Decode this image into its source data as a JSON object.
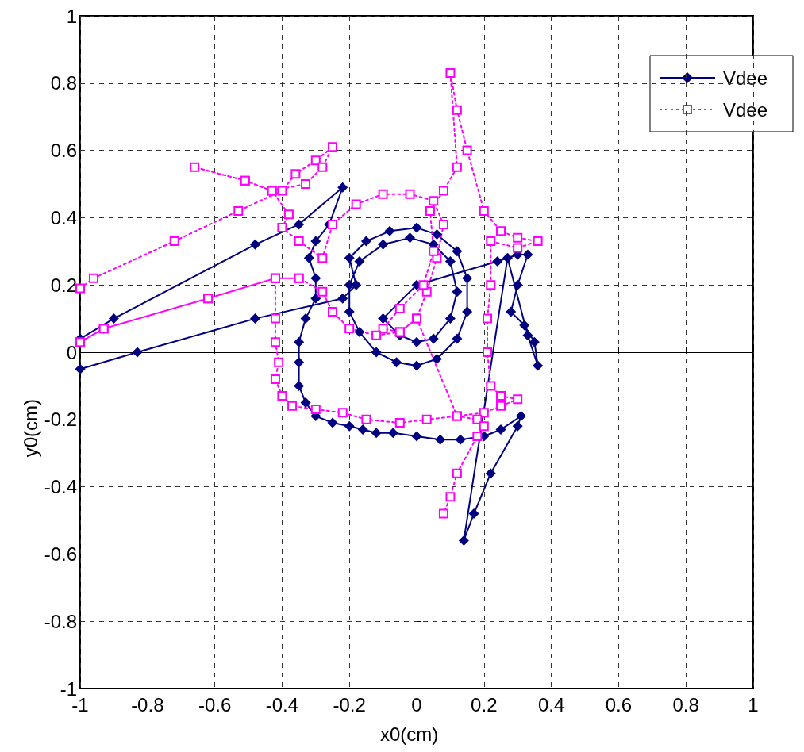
{
  "chart_data": {
    "type": "line",
    "xlabel": "x0(cm)",
    "ylabel": "y0(cm)",
    "xlim": [
      -1,
      1
    ],
    "ylim": [
      -1,
      1
    ],
    "xticks": [
      -1,
      -0.8,
      -0.6,
      -0.4,
      -0.2,
      0,
      0.2,
      0.4,
      0.6,
      0.8,
      1
    ],
    "yticks": [
      -1,
      -0.8,
      -0.6,
      -0.4,
      -0.2,
      0,
      0.2,
      0.4,
      0.6,
      0.8,
      1
    ],
    "grid": true,
    "legend": "top right",
    "series": [
      {
        "name": "Vdee",
        "color": "#000080",
        "marker": "diamond",
        "line_style": "solid",
        "x": [
          -1,
          -0.83,
          -0.48,
          -0.22,
          -0.18,
          -0.2,
          -0.15,
          -0.08,
          0,
          0.06,
          0.12,
          0.15,
          0.15,
          0.12,
          0.06,
          0,
          -0.06,
          -0.12,
          -0.17,
          -0.2,
          -0.2,
          -0.17,
          -0.1,
          -0.02,
          0.05,
          0.1,
          0.12,
          0.1,
          0.05,
          0,
          -0.05,
          -0.1,
          0,
          0.24,
          0.3,
          0.33,
          0.3,
          0.28,
          0.32,
          0.35,
          0.36,
          0.33,
          0.27,
          0.14,
          0.17,
          0.22,
          0.3,
          0.31,
          0.25,
          0.2,
          0.13,
          0.07,
          0,
          -0.07,
          -0.12,
          -0.16,
          -0.2,
          -0.25,
          -0.3,
          -0.33,
          -0.35,
          -0.35,
          -0.35,
          -0.33,
          -0.3,
          -0.3,
          -0.32,
          -0.3,
          -0.26,
          -0.22,
          -0.35,
          -0.48,
          -0.9,
          -1
        ],
        "values": [
          -0.05,
          0,
          0.1,
          0.16,
          0.2,
          0.28,
          0.33,
          0.36,
          0.37,
          0.35,
          0.3,
          0.22,
          0.12,
          0.04,
          -0.02,
          -0.04,
          -0.03,
          0,
          0.06,
          0.12,
          0.2,
          0.27,
          0.32,
          0.34,
          0.32,
          0.27,
          0.18,
          0.1,
          0.04,
          0.03,
          0.05,
          0.1,
          0.2,
          0.27,
          0.29,
          0.29,
          0.2,
          0.12,
          0.08,
          0.03,
          -0.04,
          0.05,
          0.28,
          -0.56,
          -0.48,
          -0.36,
          -0.22,
          -0.19,
          -0.23,
          -0.25,
          -0.26,
          -0.26,
          -0.25,
          -0.24,
          -0.24,
          -0.23,
          -0.22,
          -0.21,
          -0.19,
          -0.15,
          -0.1,
          -0.03,
          0.03,
          0.1,
          0.16,
          0.22,
          0.28,
          0.33,
          0.38,
          0.49,
          0.38,
          0.32,
          0.1,
          0.04
        ]
      },
      {
        "name": "Vdee",
        "color": "#ff00ff",
        "marker": "square",
        "line_style": "dotted",
        "x": [
          -1,
          -0.96,
          -0.72,
          -0.53,
          -0.4,
          -0.36,
          -0.3,
          -0.25,
          -0.28,
          -0.33,
          -0.43,
          -0.51,
          -0.66,
          -0.51,
          -0.43,
          -0.38,
          -0.4,
          -0.35,
          -0.28,
          -0.25,
          -0.18,
          -0.1,
          -0.02,
          0.05,
          0.08,
          0.06,
          0.03,
          0,
          -0.05,
          -0.1,
          -0.05,
          0.02,
          0.05,
          0.04,
          0.08,
          0.12,
          0.1,
          0.12,
          0.15,
          0.2,
          0.25,
          0.3,
          0.36,
          0.3,
          0.22,
          0.22,
          0.21,
          0.21,
          0.22,
          0.25,
          0.3,
          0.25,
          0.2,
          0.12,
          0.03,
          -0.05,
          -0.15,
          -0.22,
          -0.3,
          -0.37,
          -0.4,
          -0.42,
          -0.41,
          -0.42,
          -0.42,
          -0.42,
          -0.35,
          -0.42,
          -0.62,
          -0.93,
          -1,
          -0.93,
          -0.62,
          -0.42,
          -0.35,
          -0.28,
          -0.25,
          -0.2,
          -0.12,
          -0.05,
          0,
          0.12,
          0.18,
          0.2,
          0.18,
          0.12,
          0.1,
          0.08
        ],
        "values": [
          0.19,
          0.22,
          0.33,
          0.42,
          0.48,
          0.53,
          0.57,
          0.61,
          0.55,
          0.5,
          0.48,
          0.51,
          0.55,
          0.51,
          0.48,
          0.41,
          0.37,
          0.33,
          0.28,
          0.38,
          0.44,
          0.47,
          0.47,
          0.45,
          0.38,
          0.28,
          0.18,
          0.1,
          0.06,
          0.07,
          0.13,
          0.2,
          0.3,
          0.42,
          0.48,
          0.55,
          0.83,
          0.72,
          0.6,
          0.42,
          0.36,
          0.34,
          0.33,
          0.31,
          0.33,
          0.2,
          0.1,
          0,
          -0.1,
          -0.13,
          -0.14,
          -0.16,
          -0.18,
          -0.19,
          -0.2,
          -0.21,
          -0.2,
          -0.18,
          -0.17,
          -0.16,
          -0.13,
          -0.08,
          -0.03,
          0.03,
          0.1,
          0.22,
          0.22,
          0.22,
          0.16,
          0.07,
          0.03,
          0.07,
          0.16,
          0.22,
          0.22,
          0.18,
          0.12,
          0.07,
          0.05,
          0.06,
          0.1,
          -0.19,
          -0.2,
          -0.22,
          -0.25,
          -0.36,
          -0.43,
          -0.48
        ]
      }
    ]
  }
}
